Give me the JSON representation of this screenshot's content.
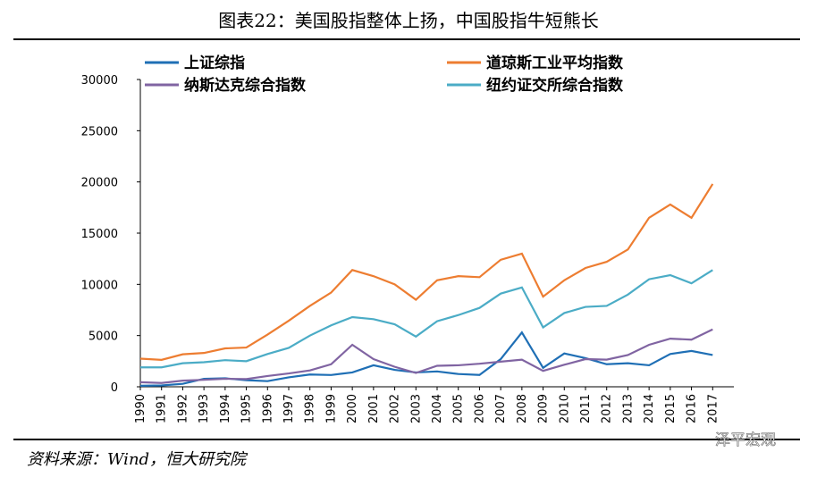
{
  "chart_data": {
    "type": "line",
    "title": "图表22：美国股指整体上扬，中国股指牛短熊长",
    "source": "资料来源：Wind，恒大研究院",
    "watermark": "泽平宏观",
    "x": [
      1990,
      1991,
      1992,
      1993,
      1994,
      1995,
      1996,
      1997,
      1998,
      1999,
      2000,
      2001,
      2002,
      2003,
      2004,
      2005,
      2006,
      2007,
      2008,
      2009,
      2010,
      2011,
      2012,
      2013,
      2014,
      2015,
      2016,
      2017
    ],
    "xlim": [
      1990,
      2018
    ],
    "xticks": [
      1990,
      1991,
      1992,
      1993,
      1994,
      1995,
      1996,
      1997,
      1998,
      1999,
      2000,
      2001,
      2002,
      2003,
      2004,
      2005,
      2006,
      2007,
      2008,
      2009,
      2010,
      2011,
      2012,
      2013,
      2014,
      2015,
      2016,
      2017
    ],
    "ylim": [
      0,
      30000
    ],
    "yticks": [
      0,
      5000,
      10000,
      15000,
      20000,
      25000,
      30000
    ],
    "legend": "top",
    "series": [
      {
        "name": "上证综指",
        "color": "#1f6fb5",
        "values": [
          100,
          130,
          290,
          780,
          830,
          640,
          550,
          920,
          1200,
          1150,
          1400,
          2100,
          1650,
          1400,
          1500,
          1250,
          1160,
          2700,
          5300,
          1850,
          3250,
          2800,
          2200,
          2300,
          2100,
          3200,
          3500,
          3100
        ]
      },
      {
        "name": "道琼斯工业平均指数",
        "color": "#ed7d31",
        "values": [
          2750,
          2630,
          3170,
          3300,
          3750,
          3830,
          5100,
          6450,
          7900,
          9200,
          11400,
          10800,
          10000,
          8500,
          10400,
          10800,
          10700,
          12400,
          13000,
          8800,
          10400,
          11600,
          12200,
          13400,
          16500,
          17800,
          16500,
          19800
        ]
      },
      {
        "name": "纳斯达克综合指数",
        "color": "#8064a2",
        "values": [
          450,
          370,
          600,
          680,
          780,
          750,
          1050,
          1300,
          1600,
          2200,
          4100,
          2700,
          1950,
          1350,
          2050,
          2100,
          2250,
          2450,
          2650,
          1550,
          2150,
          2700,
          2650,
          3100,
          4100,
          4700,
          4600,
          5600
        ]
      },
      {
        "name": "纽约证交所综合指数",
        "color": "#4bacc6",
        "values": [
          1900,
          1900,
          2300,
          2400,
          2600,
          2500,
          3200,
          3800,
          5000,
          6000,
          6800,
          6600,
          6100,
          4900,
          6400,
          7000,
          7700,
          9100,
          9700,
          5800,
          7200,
          7800,
          7900,
          9000,
          10500,
          10900,
          10100,
          11400
        ]
      }
    ]
  }
}
